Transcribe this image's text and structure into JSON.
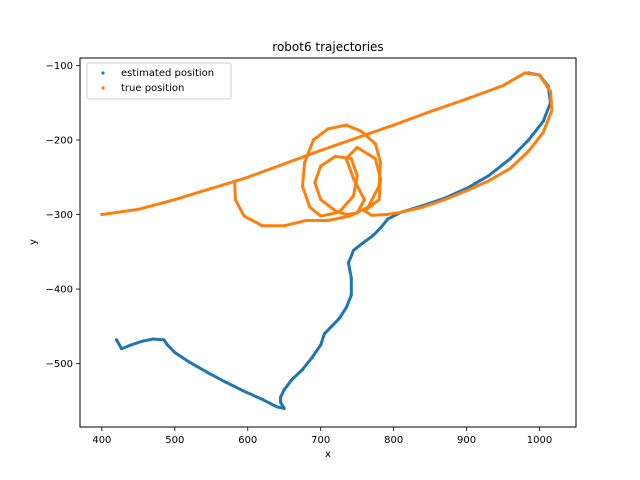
{
  "chart_data": {
    "type": "scatter",
    "title": "robot6 trajectories",
    "xlabel": "x",
    "ylabel": "y",
    "xlim": [
      370,
      1050
    ],
    "ylim": [
      -585,
      -90
    ],
    "xticks": [
      400,
      500,
      600,
      700,
      800,
      900,
      1000
    ],
    "yticks": [
      -100,
      -200,
      -300,
      -400,
      -500
    ],
    "grid": false,
    "legend_position": "top-left",
    "series": [
      {
        "name": "estimated position",
        "color": "#1f77b4",
        "points": [
          [
            420,
            -468
          ],
          [
            427,
            -480
          ],
          [
            440,
            -475
          ],
          [
            455,
            -470
          ],
          [
            470,
            -467
          ],
          [
            485,
            -468
          ],
          [
            490,
            -475
          ],
          [
            500,
            -485
          ],
          [
            520,
            -498
          ],
          [
            545,
            -512
          ],
          [
            570,
            -525
          ],
          [
            595,
            -537
          ],
          [
            620,
            -548
          ],
          [
            640,
            -558
          ],
          [
            650,
            -560
          ],
          [
            645,
            -552
          ],
          [
            645,
            -545
          ],
          [
            650,
            -535
          ],
          [
            660,
            -522
          ],
          [
            675,
            -508
          ],
          [
            688,
            -492
          ],
          [
            700,
            -475
          ],
          [
            705,
            -460
          ],
          [
            715,
            -450
          ],
          [
            725,
            -440
          ],
          [
            735,
            -425
          ],
          [
            742,
            -408
          ],
          [
            742,
            -385
          ],
          [
            738,
            -365
          ],
          [
            745,
            -348
          ],
          [
            758,
            -338
          ],
          [
            772,
            -328
          ],
          [
            782,
            -318
          ],
          [
            792,
            -306
          ],
          [
            810,
            -297
          ],
          [
            840,
            -288
          ],
          [
            870,
            -278
          ],
          [
            900,
            -265
          ],
          [
            930,
            -248
          ],
          [
            960,
            -225
          ],
          [
            985,
            -200
          ],
          [
            1005,
            -175
          ],
          [
            1015,
            -150
          ],
          [
            1012,
            -128
          ],
          [
            1000,
            -113
          ],
          [
            985,
            -110
          ]
        ]
      },
      {
        "name": "true position",
        "color": "#ff7f0e",
        "points": [
          [
            400,
            -300
          ],
          [
            450,
            -293
          ],
          [
            500,
            -280
          ],
          [
            550,
            -265
          ],
          [
            600,
            -250
          ],
          [
            650,
            -232
          ],
          [
            700,
            -214
          ],
          [
            750,
            -197
          ],
          [
            800,
            -180
          ],
          [
            850,
            -162
          ],
          [
            900,
            -145
          ],
          [
            950,
            -127
          ],
          [
            980,
            -110
          ],
          [
            1000,
            -113
          ],
          [
            1015,
            -135
          ],
          [
            1017,
            -160
          ],
          [
            1005,
            -190
          ],
          [
            985,
            -215
          ],
          [
            960,
            -238
          ],
          [
            930,
            -255
          ],
          [
            900,
            -268
          ],
          [
            870,
            -280
          ],
          [
            840,
            -290
          ],
          [
            810,
            -297
          ],
          [
            790,
            -300
          ],
          [
            770,
            -301
          ],
          [
            760,
            -295
          ],
          [
            780,
            -280
          ],
          [
            782,
            -252
          ],
          [
            775,
            -225
          ],
          [
            750,
            -210
          ],
          [
            735,
            -225
          ],
          [
            745,
            -252
          ],
          [
            760,
            -280
          ],
          [
            750,
            -298
          ],
          [
            735,
            -300
          ],
          [
            720,
            -295
          ],
          [
            700,
            -280
          ],
          [
            692,
            -257
          ],
          [
            700,
            -235
          ],
          [
            720,
            -222
          ],
          [
            742,
            -225
          ],
          [
            750,
            -248
          ],
          [
            745,
            -275
          ],
          [
            725,
            -297
          ],
          [
            700,
            -302
          ],
          [
            685,
            -290
          ],
          [
            675,
            -262
          ],
          [
            678,
            -230
          ],
          [
            690,
            -200
          ],
          [
            710,
            -185
          ],
          [
            735,
            -180
          ],
          [
            755,
            -188
          ],
          [
            775,
            -205
          ],
          [
            782,
            -230
          ],
          [
            780,
            -262
          ],
          [
            765,
            -290
          ],
          [
            740,
            -302
          ],
          [
            710,
            -308
          ],
          [
            680,
            -308
          ],
          [
            650,
            -315
          ],
          [
            620,
            -315
          ],
          [
            595,
            -302
          ],
          [
            583,
            -280
          ],
          [
            582,
            -256
          ]
        ]
      }
    ]
  }
}
